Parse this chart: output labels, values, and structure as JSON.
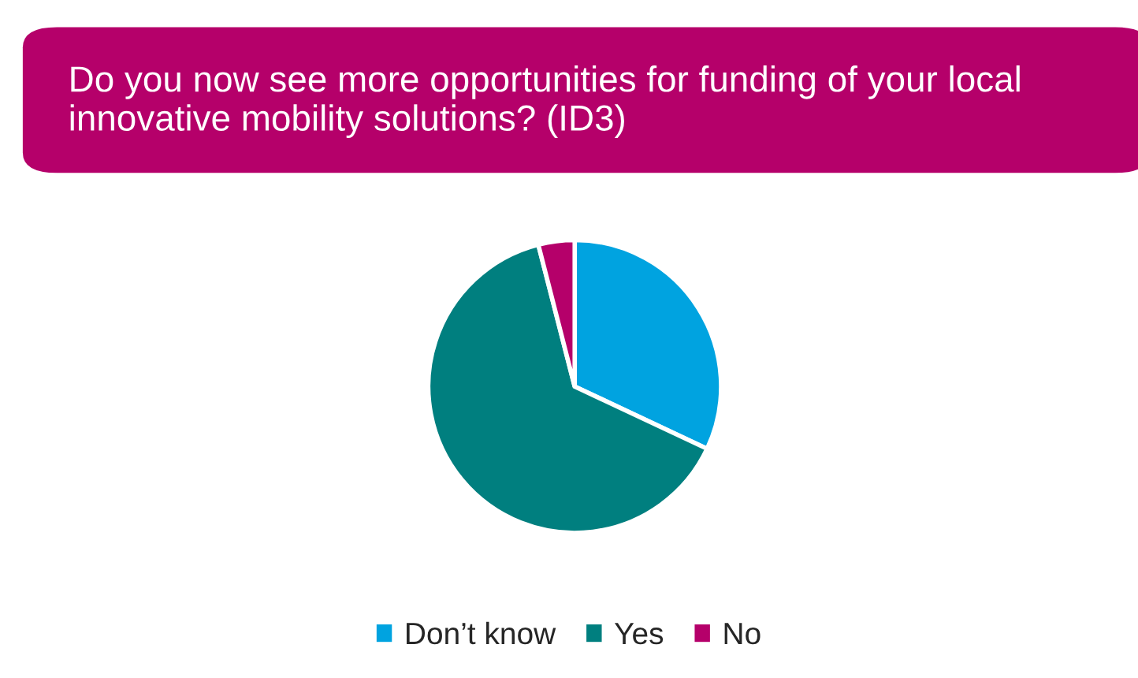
{
  "chart_data": {
    "type": "pie",
    "title": "Do you now see more opportunities for funding of your local innovative mobility solutions? (ID3)",
    "categories": [
      "Don’t know",
      "Yes",
      "No"
    ],
    "values": [
      32,
      64,
      4
    ],
    "colors": [
      "#00a3e0",
      "#007f7f",
      "#b5006a"
    ],
    "legend": "bottom"
  }
}
